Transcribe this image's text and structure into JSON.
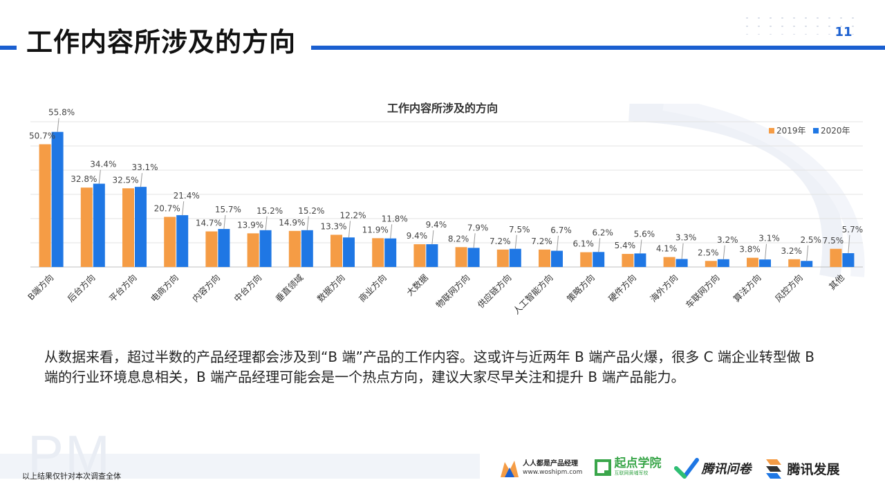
{
  "header": {
    "title": "工作内容所涉及的方向",
    "page_number": "11"
  },
  "chart_data": {
    "type": "bar",
    "title": "工作内容所涉及的方向",
    "categories": [
      "B端方向",
      "后台方向",
      "平台方向",
      "电商方向",
      "内容方向",
      "中台方向",
      "垂直领域",
      "数据方向",
      "商业方向",
      "大数据",
      "物联网方向",
      "供应链方向",
      "人工智能方向",
      "策略方向",
      "硬件方向",
      "海外方向",
      "车联网方向",
      "算法方向",
      "风控方向",
      "其他"
    ],
    "series": [
      {
        "name": "2019年",
        "color": "#f59c45",
        "values": [
          50.7,
          32.8,
          32.5,
          20.7,
          14.7,
          13.9,
          14.9,
          13.3,
          11.9,
          9.4,
          8.2,
          7.2,
          7.2,
          6.1,
          5.4,
          4.1,
          2.5,
          3.8,
          3.2,
          7.5
        ],
        "labels": [
          "50.7%",
          "32.8%",
          "32.5%",
          "20.7%",
          "14.7%",
          "13.9%",
          "14.9%",
          "13.3%",
          "11.9%",
          "9.4%",
          "8.2%",
          "7.2%",
          "7.2%",
          "6.1%",
          "5.4%",
          "4.1%",
          "2.5%",
          "3.8%",
          "3.2%",
          "7.5%"
        ]
      },
      {
        "name": "2020年",
        "color": "#1f77e4",
        "values": [
          55.8,
          34.4,
          33.1,
          21.4,
          15.7,
          15.2,
          15.2,
          12.2,
          11.8,
          9.4,
          7.9,
          7.5,
          6.7,
          6.2,
          5.6,
          3.3,
          3.2,
          3.1,
          2.5,
          5.7
        ],
        "labels": [
          "55.8%",
          "34.4%",
          "33.1%",
          "21.4%",
          "15.7%",
          "15.2%",
          "15.2%",
          "12.2%",
          "11.8%",
          "9.4%",
          "7.9%",
          "7.5%",
          "6.7%",
          "6.2%",
          "5.6%",
          "3.3%",
          "3.2%",
          "3.1%",
          "2.5%",
          "5.7%"
        ]
      }
    ],
    "ylim": [
      0,
      60
    ],
    "grid": true,
    "legend": "top-right",
    "xlabel": "",
    "ylabel": ""
  },
  "description": "从数据来看，超过半数的产品经理都会涉及到“B 端”产品的工作内容。这或许与近两年 B 端产品火爆，很多 C 端企业转型做 B 端的行业环境息息相关，B 端产品经理可能会是一个热点方向，建议大家尽早关注和提升 B 端产品能力。",
  "footer": {
    "watermark": "PM",
    "footnote": "以上结果仅针对本次调查全体",
    "logos": {
      "woshipm_name": "人人都是产品经理",
      "woshipm_url": "www.woshipm.com",
      "qidian_name": "起点学院",
      "qidian_sub": "互联网黄埔军校",
      "wenjuan_name": "腾讯问卷",
      "fazhan_name": "腾讯发展"
    }
  }
}
